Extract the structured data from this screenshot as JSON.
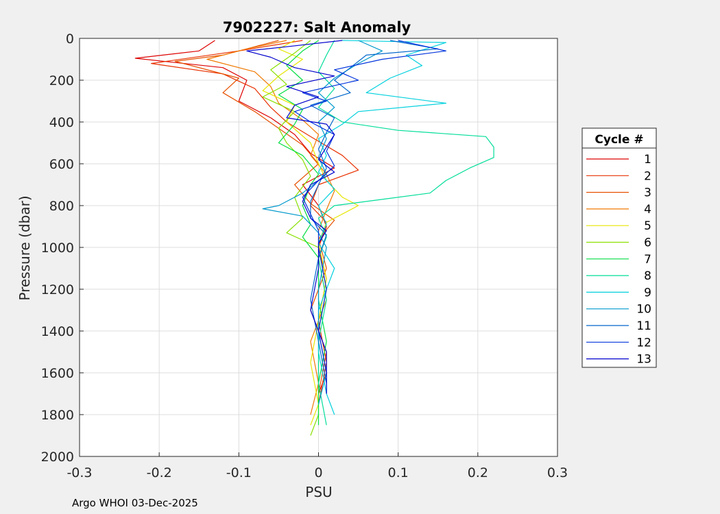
{
  "footer": "Argo WHOI 03-Dec-2025",
  "chart_data": {
    "type": "line",
    "title": "7902227: Salt Anomaly",
    "xlabel": "PSU",
    "ylabel": "Pressure (dbar)",
    "xlim": [
      -0.3,
      0.3
    ],
    "ylim": [
      0,
      2000
    ],
    "y_reversed": true,
    "grid": true,
    "xticks": [
      -0.3,
      -0.2,
      -0.1,
      0,
      0.1,
      0.2,
      0.3
    ],
    "xtick_labels": [
      "-0.3",
      "-0.2",
      "-0.1",
      "0",
      "0.1",
      "0.2",
      "0.3"
    ],
    "yticks": [
      0,
      200,
      400,
      600,
      800,
      1000,
      1200,
      1400,
      1600,
      1800,
      2000
    ],
    "ytick_labels": [
      "0",
      "200",
      "400",
      "600",
      "800",
      "1000",
      "1200",
      "1400",
      "1600",
      "1800",
      "2000"
    ],
    "legend": {
      "title": "Cycle #",
      "placement": "right-outside"
    },
    "series": [
      {
        "name": "1",
        "color": "#dd0000",
        "points": [
          [
            -0.13,
            10
          ],
          [
            -0.15,
            60
          ],
          [
            -0.23,
            95
          ],
          [
            -0.12,
            140
          ],
          [
            -0.09,
            200
          ],
          [
            -0.1,
            300
          ],
          [
            -0.06,
            380
          ],
          [
            -0.03,
            460
          ],
          [
            -0.01,
            550
          ],
          [
            0.02,
            620
          ],
          [
            -0.02,
            700
          ],
          [
            0.0,
            800
          ],
          [
            0.01,
            900
          ],
          [
            0.0,
            1000
          ],
          [
            0.01,
            1200
          ],
          [
            0.0,
            1400
          ],
          [
            0.01,
            1600
          ],
          [
            0.0,
            1700
          ]
        ]
      },
      {
        "name": "2",
        "color": "#e83000",
        "points": [
          [
            -0.02,
            10
          ],
          [
            -0.1,
            60
          ],
          [
            -0.21,
            120
          ],
          [
            -0.12,
            170
          ],
          [
            -0.08,
            240
          ],
          [
            -0.06,
            330
          ],
          [
            -0.04,
            400
          ],
          [
            -0.01,
            470
          ],
          [
            0.03,
            560
          ],
          [
            0.05,
            630
          ],
          [
            0.0,
            700
          ],
          [
            -0.01,
            800
          ],
          [
            0.01,
            880
          ],
          [
            0.0,
            1000
          ],
          [
            0.01,
            1150
          ],
          [
            0.0,
            1350
          ],
          [
            0.01,
            1550
          ],
          [
            0.0,
            1750
          ]
        ]
      },
      {
        "name": "3",
        "color": "#e65000",
        "points": [
          [
            -0.05,
            10
          ],
          [
            -0.12,
            80
          ],
          [
            -0.18,
            110
          ],
          [
            -0.1,
            190
          ],
          [
            -0.12,
            260
          ],
          [
            -0.08,
            350
          ],
          [
            -0.05,
            430
          ],
          [
            -0.02,
            510
          ],
          [
            0.0,
            600
          ],
          [
            -0.03,
            700
          ],
          [
            -0.01,
            790
          ],
          [
            0.02,
            870
          ],
          [
            0.0,
            960
          ],
          [
            0.01,
            1100
          ],
          [
            -0.01,
            1300
          ],
          [
            0.01,
            1500
          ],
          [
            0.0,
            1700
          ]
        ]
      },
      {
        "name": "4",
        "color": "#f07800",
        "points": [
          [
            -0.04,
            10
          ],
          [
            -0.09,
            50
          ],
          [
            -0.14,
            100
          ],
          [
            -0.08,
            160
          ],
          [
            -0.06,
            230
          ],
          [
            -0.05,
            310
          ],
          [
            -0.02,
            390
          ],
          [
            0.0,
            460
          ],
          [
            -0.01,
            560
          ],
          [
            0.01,
            650
          ],
          [
            0.02,
            730
          ],
          [
            0.01,
            820
          ],
          [
            0.0,
            920
          ],
          [
            0.0,
            1050
          ],
          [
            0.01,
            1250
          ],
          [
            -0.01,
            1450
          ],
          [
            0.0,
            1650
          ],
          [
            -0.01,
            1800
          ]
        ]
      },
      {
        "name": "5",
        "color": "#e6e600",
        "points": [
          [
            -0.03,
            10
          ],
          [
            -0.05,
            50
          ],
          [
            -0.02,
            100
          ],
          [
            -0.05,
            180
          ],
          [
            -0.07,
            250
          ],
          [
            -0.03,
            320
          ],
          [
            -0.04,
            400
          ],
          [
            -0.01,
            500
          ],
          [
            0.0,
            600
          ],
          [
            0.01,
            680
          ],
          [
            0.03,
            760
          ],
          [
            0.05,
            800
          ],
          [
            0.01,
            880
          ],
          [
            0.0,
            980
          ],
          [
            0.01,
            1150
          ],
          [
            0.0,
            1350
          ],
          [
            -0.01,
            1550
          ],
          [
            0.0,
            1750
          ],
          [
            -0.01,
            1850
          ]
        ]
      },
      {
        "name": "6",
        "color": "#88e000",
        "points": [
          [
            -0.01,
            10
          ],
          [
            -0.03,
            70
          ],
          [
            -0.06,
            150
          ],
          [
            -0.04,
            220
          ],
          [
            -0.07,
            280
          ],
          [
            -0.03,
            350
          ],
          [
            -0.05,
            430
          ],
          [
            -0.04,
            500
          ],
          [
            -0.02,
            580
          ],
          [
            -0.01,
            660
          ],
          [
            -0.03,
            760
          ],
          [
            -0.02,
            860
          ],
          [
            -0.04,
            930
          ],
          [
            0.0,
            1000
          ],
          [
            0.01,
            1200
          ],
          [
            0.0,
            1400
          ],
          [
            0.0,
            1600
          ],
          [
            0.0,
            1800
          ],
          [
            -0.01,
            1900
          ]
        ]
      },
      {
        "name": "7",
        "color": "#00dd40",
        "points": [
          [
            0.0,
            10
          ],
          [
            -0.02,
            60
          ],
          [
            -0.04,
            130
          ],
          [
            -0.02,
            200
          ],
          [
            -0.05,
            270
          ],
          [
            -0.02,
            340
          ],
          [
            -0.03,
            410
          ],
          [
            -0.05,
            500
          ],
          [
            -0.02,
            560
          ],
          [
            0.0,
            650
          ],
          [
            -0.01,
            700
          ],
          [
            -0.02,
            800
          ],
          [
            -0.01,
            890
          ],
          [
            -0.02,
            950
          ],
          [
            0.0,
            1050
          ],
          [
            0.0,
            1250
          ],
          [
            0.01,
            1450
          ],
          [
            0.0,
            1650
          ],
          [
            0.0,
            1850
          ]
        ]
      },
      {
        "name": "8",
        "color": "#00dd99",
        "points": [
          [
            0.02,
            10
          ],
          [
            0.01,
            80
          ],
          [
            0.0,
            160
          ],
          [
            0.02,
            240
          ],
          [
            0.0,
            330
          ],
          [
            0.03,
            400
          ],
          [
            0.1,
            440
          ],
          [
            0.21,
            470
          ],
          [
            0.22,
            520
          ],
          [
            0.22,
            570
          ],
          [
            0.19,
            620
          ],
          [
            0.16,
            680
          ],
          [
            0.14,
            740
          ],
          [
            0.08,
            770
          ],
          [
            0.02,
            800
          ],
          [
            0.0,
            860
          ],
          [
            0.01,
            950
          ],
          [
            0.0,
            1050
          ],
          [
            0.01,
            1250
          ],
          [
            0.0,
            1450
          ],
          [
            0.0,
            1650
          ],
          [
            0.01,
            1850
          ]
        ]
      },
      {
        "name": "9",
        "color": "#00d0dd",
        "points": [
          [
            0.03,
            10
          ],
          [
            0.16,
            20
          ],
          [
            0.11,
            80
          ],
          [
            0.13,
            130
          ],
          [
            0.09,
            190
          ],
          [
            0.06,
            260
          ],
          [
            0.16,
            310
          ],
          [
            0.05,
            350
          ],
          [
            0.03,
            410
          ],
          [
            0.0,
            480
          ],
          [
            0.01,
            560
          ],
          [
            0.0,
            640
          ],
          [
            0.02,
            720
          ],
          [
            0.0,
            800
          ],
          [
            0.01,
            890
          ],
          [
            0.0,
            980
          ],
          [
            0.02,
            1100
          ],
          [
            0.0,
            1300
          ],
          [
            0.0,
            1500
          ],
          [
            0.01,
            1700
          ],
          [
            0.02,
            1800
          ]
        ]
      },
      {
        "name": "10",
        "color": "#0099cc",
        "points": [
          [
            0.05,
            10
          ],
          [
            0.08,
            60
          ],
          [
            0.05,
            120
          ],
          [
            0.02,
            190
          ],
          [
            0.0,
            260
          ],
          [
            0.02,
            330
          ],
          [
            0.0,
            400
          ],
          [
            0.01,
            480
          ],
          [
            0.0,
            570
          ],
          [
            0.01,
            650
          ],
          [
            -0.02,
            740
          ],
          [
            -0.05,
            800
          ],
          [
            -0.07,
            815
          ],
          [
            -0.02,
            850
          ],
          [
            0.0,
            930
          ],
          [
            0.01,
            1000
          ],
          [
            0.0,
            1200
          ],
          [
            0.0,
            1400
          ],
          [
            0.01,
            1600
          ],
          [
            0.0,
            1750
          ]
        ]
      },
      {
        "name": "11",
        "color": "#0066cc",
        "points": [
          [
            0.09,
            10
          ],
          [
            0.15,
            50
          ],
          [
            0.06,
            80
          ],
          [
            0.04,
            140
          ],
          [
            0.02,
            200
          ],
          [
            0.04,
            260
          ],
          [
            -0.01,
            320
          ],
          [
            0.02,
            380
          ],
          [
            0.01,
            450
          ],
          [
            0.0,
            530
          ],
          [
            0.01,
            620
          ],
          [
            0.0,
            700
          ],
          [
            -0.01,
            780
          ],
          [
            -0.01,
            860
          ],
          [
            0.01,
            940
          ],
          [
            0.0,
            1050
          ],
          [
            -0.01,
            1250
          ],
          [
            0.0,
            1450
          ],
          [
            0.01,
            1650
          ]
        ]
      },
      {
        "name": "12",
        "color": "#0033dd",
        "points": [
          [
            0.1,
            10
          ],
          [
            0.16,
            60
          ],
          [
            0.08,
            100
          ],
          [
            0.02,
            150
          ],
          [
            0.05,
            200
          ],
          [
            -0.02,
            260
          ],
          [
            0.01,
            300
          ],
          [
            -0.03,
            350
          ],
          [
            -0.01,
            400
          ],
          [
            0.02,
            460
          ],
          [
            0.01,
            540
          ],
          [
            0.02,
            610
          ],
          [
            0.0,
            680
          ],
          [
            -0.02,
            760
          ],
          [
            -0.01,
            840
          ],
          [
            0.0,
            920
          ],
          [
            0.0,
            1000
          ],
          [
            0.01,
            1200
          ],
          [
            0.0,
            1400
          ],
          [
            0.01,
            1600
          ],
          [
            0.01,
            1700
          ]
        ]
      },
      {
        "name": "13",
        "color": "#0000cc",
        "points": [
          [
            0.03,
            10
          ],
          [
            -0.04,
            40
          ],
          [
            -0.09,
            60
          ],
          [
            -0.06,
            90
          ],
          [
            -0.03,
            140
          ],
          [
            0.02,
            180
          ],
          [
            -0.04,
            230
          ],
          [
            0.0,
            280
          ],
          [
            -0.03,
            320
          ],
          [
            -0.04,
            380
          ],
          [
            0.01,
            410
          ],
          [
            0.02,
            460
          ],
          [
            0.01,
            520
          ],
          [
            0.0,
            580
          ],
          [
            0.02,
            640
          ],
          [
            -0.01,
            700
          ],
          [
            -0.02,
            780
          ],
          [
            -0.01,
            860
          ],
          [
            0.01,
            920
          ],
          [
            0.0,
            980
          ],
          [
            0.0,
            1100
          ],
          [
            -0.01,
            1300
          ],
          [
            0.01,
            1500
          ],
          [
            0.01,
            1700
          ]
        ]
      }
    ]
  }
}
